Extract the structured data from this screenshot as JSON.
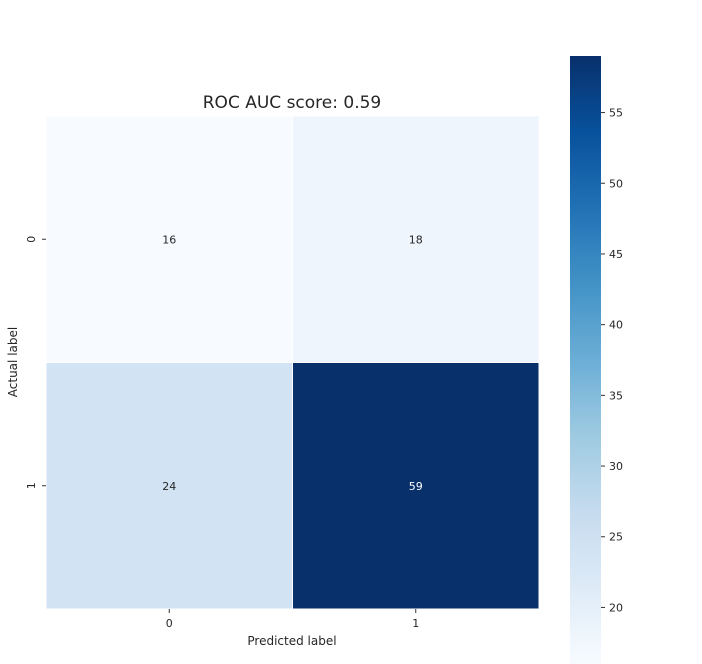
{
  "chart_data": {
    "type": "heatmap",
    "title": "ROC AUC score: 0.59",
    "xlabel": "Predicted label",
    "ylabel": "Actual label",
    "x_categories": [
      "0",
      "1"
    ],
    "y_categories": [
      "0",
      "1"
    ],
    "values": [
      [
        16,
        18
      ],
      [
        24,
        59
      ]
    ],
    "colormap": "Blues",
    "colorbar": {
      "vmin": 16,
      "vmax": 59,
      "ticks": [
        20,
        25,
        30,
        35,
        40,
        45,
        50,
        55
      ],
      "tick_labels": [
        "20",
        "25",
        "30",
        "35",
        "40",
        "45",
        "50",
        "55"
      ]
    },
    "grid": false,
    "legend": "colorbar-right"
  }
}
